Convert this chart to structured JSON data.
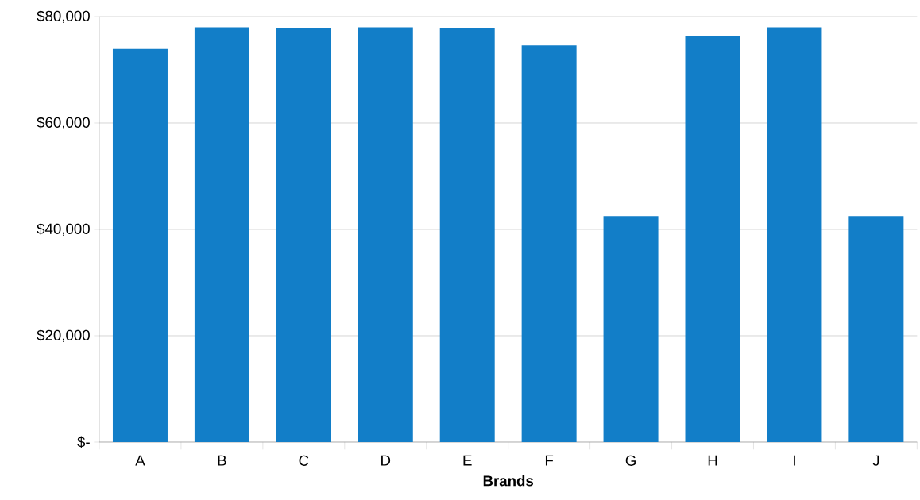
{
  "chart_data": {
    "type": "bar",
    "xlabel": "Brands",
    "categories": [
      "A",
      "B",
      "C",
      "D",
      "E",
      "F",
      "G",
      "H",
      "I",
      "J"
    ],
    "values": [
      73900,
      78000,
      77900,
      78000,
      77900,
      74600,
      42500,
      76400,
      78000,
      42500
    ],
    "color": "#127ec8",
    "ylim": [
      0,
      80000
    ],
    "yticks": [
      {
        "value": 0,
        "label": "$-"
      },
      {
        "value": 20000,
        "label": "$20,000"
      },
      {
        "value": 40000,
        "label": "$40,000"
      },
      {
        "value": 60000,
        "label": "$60,000"
      },
      {
        "value": 80000,
        "label": "$80,000"
      }
    ],
    "grid": "y"
  }
}
